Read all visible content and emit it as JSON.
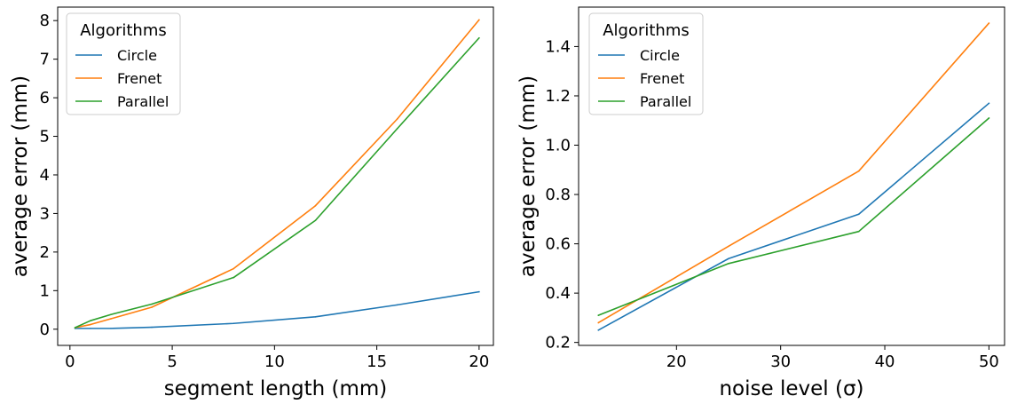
{
  "chart_data": [
    {
      "type": "line",
      "title": "",
      "xlabel": "segment length (mm)",
      "ylabel": "average error (mm)",
      "x": [
        0.25,
        1,
        2,
        4,
        8,
        12,
        16,
        20
      ],
      "xlim": [
        -0.6,
        20.7
      ],
      "ylim": [
        -0.42,
        8.35
      ],
      "xticks": [
        0,
        5,
        10,
        15,
        20
      ],
      "xtick_labels": [
        "0",
        "5",
        "10",
        "15",
        "20"
      ],
      "yticks": [
        0,
        1,
        2,
        3,
        4,
        5,
        6,
        7,
        8
      ],
      "ytick_labels": [
        "0",
        "1",
        "2",
        "3",
        "4",
        "5",
        "6",
        "7",
        "8"
      ],
      "grid": false,
      "legend": {
        "title": "Algorithms",
        "placement": "top-left"
      },
      "series": [
        {
          "name": "Circle",
          "color": "#1f77b4",
          "values": [
            0.02,
            0.02,
            0.02,
            0.05,
            0.15,
            0.32,
            0.63,
            0.97
          ]
        },
        {
          "name": "Frenet",
          "color": "#ff7f0e",
          "values": [
            0.04,
            0.12,
            0.27,
            0.57,
            1.57,
            3.2,
            5.45,
            8.02
          ]
        },
        {
          "name": "Parallel",
          "color": "#2ca02c",
          "values": [
            0.04,
            0.22,
            0.38,
            0.65,
            1.34,
            2.82,
            5.2,
            7.55
          ]
        }
      ]
    },
    {
      "type": "line",
      "title": "",
      "xlabel": "noise level (σ)",
      "ylabel": "average error (mm)",
      "x": [
        12.5,
        25,
        37.5,
        50
      ],
      "xlim": [
        10.6,
        51.5
      ],
      "ylim": [
        0.188,
        1.56
      ],
      "xticks": [
        20,
        30,
        40,
        50
      ],
      "xtick_labels": [
        "20",
        "30",
        "40",
        "50"
      ],
      "yticks": [
        0.2,
        0.4,
        0.6,
        0.8,
        1.0,
        1.2,
        1.4
      ],
      "ytick_labels": [
        "0.2",
        "0.4",
        "0.6",
        "0.8",
        "1.0",
        "1.2",
        "1.4"
      ],
      "grid": false,
      "legend": {
        "title": "Algorithms",
        "placement": "top-left"
      },
      "series": [
        {
          "name": "Circle",
          "color": "#1f77b4",
          "values": [
            0.25,
            0.54,
            0.72,
            1.17
          ]
        },
        {
          "name": "Frenet",
          "color": "#ff7f0e",
          "values": [
            0.28,
            0.59,
            0.895,
            1.495
          ]
        },
        {
          "name": "Parallel",
          "color": "#2ca02c",
          "values": [
            0.31,
            0.52,
            0.65,
            1.11
          ]
        }
      ]
    }
  ]
}
